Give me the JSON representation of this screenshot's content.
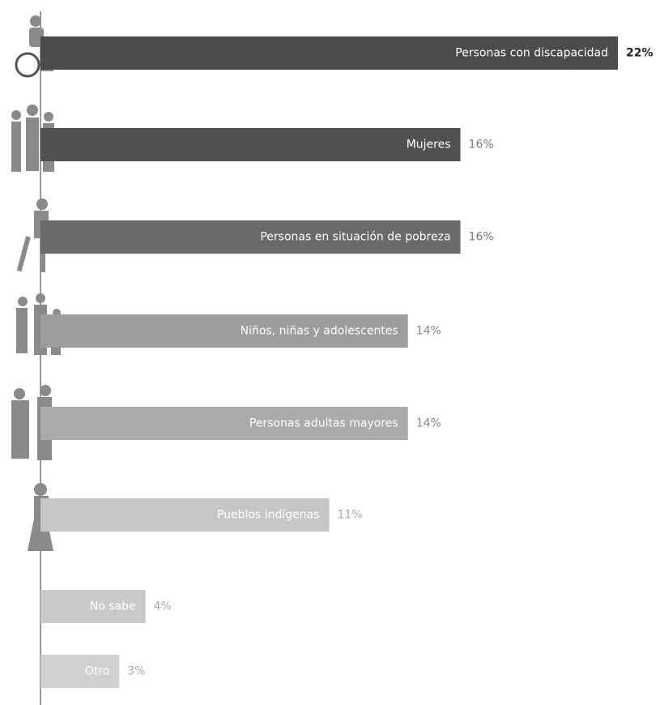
{
  "chart_data": {
    "type": "bar",
    "orientation": "horizontal",
    "categories": [
      "Personas con discapacidad",
      "Mujeres",
      "Personas en situación de pobreza",
      "Niños, niñas y adolescentes",
      "Personas adultas mayores",
      "Pueblos indígenas",
      "No sabe",
      "Otro"
    ],
    "values": [
      22,
      16,
      16,
      14,
      14,
      11,
      4,
      3
    ],
    "value_labels": [
      "22%",
      "16%",
      "16%",
      "14%",
      "14%",
      "11%",
      "4%",
      "3%"
    ],
    "colors": [
      "#4b4b4b",
      "#505050",
      "#6a6a6a",
      "#9d9d9d",
      "#ababab",
      "#c6c6c6",
      "#c9c9c9",
      "#d0d0d0"
    ]
  }
}
